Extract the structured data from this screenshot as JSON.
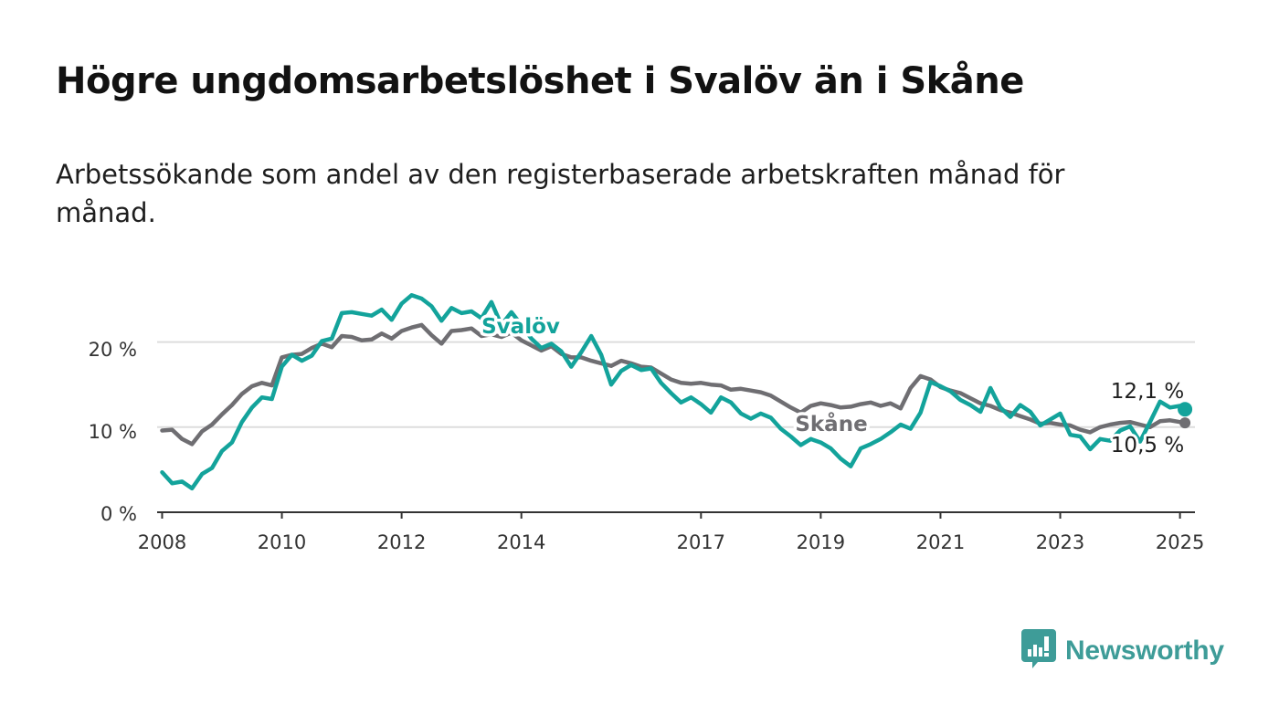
{
  "header": {
    "title": "Högre ungdomsarbetslöshet i Svalöv än i Skåne",
    "subtitle": "Arbetssökande som andel av den registerbaserade arbetskraften månad för månad."
  },
  "brand": {
    "name": "Newsworthy",
    "icon": "newsworthy-logo-icon",
    "color": "#3e9c98"
  },
  "colors": {
    "svalov": "#13a39b",
    "skane": "#6f6e72",
    "grid": "#dddddd",
    "axis": "#333333"
  },
  "chart_data": {
    "type": "line",
    "x_ticks": [
      "2008",
      "2010",
      "2012",
      "2014",
      "2017",
      "2019",
      "2021",
      "2023",
      "2025"
    ],
    "y_ticks": [
      "0 %",
      "10 %",
      "20 %"
    ],
    "ylim": [
      0,
      28
    ],
    "xlim": [
      "2007-12",
      "2025-04"
    ],
    "grid": "horizontal",
    "legend": "inline labels on lines",
    "series": [
      {
        "name": "Svalöv",
        "color": "#13a39b",
        "end_label": "12,1 %",
        "points": [
          [
            "2008-01",
            4.7
          ],
          [
            "2008-03",
            3.4
          ],
          [
            "2008-05",
            3.6
          ],
          [
            "2008-07",
            2.8
          ],
          [
            "2008-09",
            4.5
          ],
          [
            "2008-11",
            5.2
          ],
          [
            "2009-01",
            7.2
          ],
          [
            "2009-03",
            8.2
          ],
          [
            "2009-05",
            10.6
          ],
          [
            "2009-07",
            12.3
          ],
          [
            "2009-09",
            13.5
          ],
          [
            "2009-11",
            13.3
          ],
          [
            "2010-01",
            17.1
          ],
          [
            "2010-03",
            18.5
          ],
          [
            "2010-05",
            17.8
          ],
          [
            "2010-07",
            18.4
          ],
          [
            "2010-09",
            20.1
          ],
          [
            "2010-11",
            20.4
          ],
          [
            "2011-01",
            23.4
          ],
          [
            "2011-03",
            23.5
          ],
          [
            "2011-05",
            23.3
          ],
          [
            "2011-07",
            23.1
          ],
          [
            "2011-09",
            23.8
          ],
          [
            "2011-11",
            22.6
          ],
          [
            "2012-01",
            24.5
          ],
          [
            "2012-03",
            25.5
          ],
          [
            "2012-05",
            25.1
          ],
          [
            "2012-07",
            24.2
          ],
          [
            "2012-09",
            22.5
          ],
          [
            "2012-11",
            24.0
          ],
          [
            "2013-01",
            23.4
          ],
          [
            "2013-03",
            23.6
          ],
          [
            "2013-05",
            22.8
          ],
          [
            "2013-07",
            24.7
          ],
          [
            "2013-09",
            22.0
          ],
          [
            "2013-11",
            23.5
          ],
          [
            "2014-01",
            22.0
          ],
          [
            "2014-03",
            20.4
          ],
          [
            "2014-05",
            19.3
          ],
          [
            "2014-07",
            19.8
          ],
          [
            "2014-09",
            18.9
          ],
          [
            "2014-11",
            17.1
          ],
          [
            "2015-01",
            18.8
          ],
          [
            "2015-03",
            20.7
          ],
          [
            "2015-05",
            18.5
          ],
          [
            "2015-07",
            15.0
          ],
          [
            "2015-09",
            16.6
          ],
          [
            "2015-11",
            17.3
          ],
          [
            "2016-01",
            16.7
          ],
          [
            "2016-03",
            16.9
          ],
          [
            "2016-05",
            15.2
          ],
          [
            "2016-07",
            14.0
          ],
          [
            "2016-09",
            12.9
          ],
          [
            "2016-11",
            13.5
          ],
          [
            "2017-01",
            12.7
          ],
          [
            "2017-03",
            11.7
          ],
          [
            "2017-05",
            13.5
          ],
          [
            "2017-07",
            12.9
          ],
          [
            "2017-09",
            11.6
          ],
          [
            "2017-11",
            11.0
          ],
          [
            "2018-01",
            11.6
          ],
          [
            "2018-03",
            11.1
          ],
          [
            "2018-05",
            9.8
          ],
          [
            "2018-07",
            8.9
          ],
          [
            "2018-09",
            7.9
          ],
          [
            "2018-11",
            8.6
          ],
          [
            "2019-01",
            8.2
          ],
          [
            "2019-03",
            7.5
          ],
          [
            "2019-05",
            6.3
          ],
          [
            "2019-07",
            5.4
          ],
          [
            "2019-09",
            7.5
          ],
          [
            "2019-11",
            8.0
          ],
          [
            "2020-01",
            8.6
          ],
          [
            "2020-03",
            9.4
          ],
          [
            "2020-05",
            10.3
          ],
          [
            "2020-07",
            9.8
          ],
          [
            "2020-09",
            11.7
          ],
          [
            "2020-11",
            15.3
          ],
          [
            "2021-01",
            14.8
          ],
          [
            "2021-03",
            14.2
          ],
          [
            "2021-05",
            13.2
          ],
          [
            "2021-07",
            12.6
          ],
          [
            "2021-09",
            11.8
          ],
          [
            "2021-11",
            14.6
          ],
          [
            "2022-01",
            12.3
          ],
          [
            "2022-03",
            11.2
          ],
          [
            "2022-05",
            12.6
          ],
          [
            "2022-07",
            11.8
          ],
          [
            "2022-09",
            10.2
          ],
          [
            "2022-11",
            10.9
          ],
          [
            "2023-01",
            11.6
          ],
          [
            "2023-03",
            9.1
          ],
          [
            "2023-05",
            8.9
          ],
          [
            "2023-07",
            7.4
          ],
          [
            "2023-09",
            8.6
          ],
          [
            "2023-11",
            8.4
          ],
          [
            "2024-01",
            9.6
          ],
          [
            "2024-03",
            10.1
          ],
          [
            "2024-05",
            8.3
          ],
          [
            "2024-07",
            10.6
          ],
          [
            "2024-09",
            13.0
          ],
          [
            "2024-11",
            12.3
          ],
          [
            "2025-01",
            12.5
          ],
          [
            "2025-02",
            12.1
          ]
        ]
      },
      {
        "name": "Skåne",
        "color": "#6f6e72",
        "end_label": "10,5 %",
        "points": [
          [
            "2008-01",
            9.6
          ],
          [
            "2008-03",
            9.7
          ],
          [
            "2008-05",
            8.6
          ],
          [
            "2008-07",
            8.0
          ],
          [
            "2008-09",
            9.5
          ],
          [
            "2008-11",
            10.3
          ],
          [
            "2009-01",
            11.5
          ],
          [
            "2009-03",
            12.6
          ],
          [
            "2009-05",
            13.9
          ],
          [
            "2009-07",
            14.8
          ],
          [
            "2009-09",
            15.2
          ],
          [
            "2009-11",
            14.9
          ],
          [
            "2010-01",
            18.2
          ],
          [
            "2010-03",
            18.5
          ],
          [
            "2010-05",
            18.6
          ],
          [
            "2010-07",
            19.3
          ],
          [
            "2010-09",
            19.8
          ],
          [
            "2010-11",
            19.4
          ],
          [
            "2011-01",
            20.7
          ],
          [
            "2011-03",
            20.6
          ],
          [
            "2011-05",
            20.2
          ],
          [
            "2011-07",
            20.3
          ],
          [
            "2011-09",
            21.0
          ],
          [
            "2011-11",
            20.4
          ],
          [
            "2012-01",
            21.3
          ],
          [
            "2012-03",
            21.7
          ],
          [
            "2012-05",
            22.0
          ],
          [
            "2012-07",
            20.8
          ],
          [
            "2012-09",
            19.8
          ],
          [
            "2012-11",
            21.3
          ],
          [
            "2013-01",
            21.4
          ],
          [
            "2013-03",
            21.6
          ],
          [
            "2013-05",
            20.7
          ],
          [
            "2013-07",
            20.9
          ],
          [
            "2013-09",
            20.6
          ],
          [
            "2013-11",
            21.1
          ],
          [
            "2014-01",
            20.2
          ],
          [
            "2014-03",
            19.6
          ],
          [
            "2014-05",
            19.0
          ],
          [
            "2014-07",
            19.5
          ],
          [
            "2014-09",
            18.6
          ],
          [
            "2014-11",
            18.2
          ],
          [
            "2015-01",
            18.2
          ],
          [
            "2015-03",
            17.8
          ],
          [
            "2015-05",
            17.5
          ],
          [
            "2015-07",
            17.2
          ],
          [
            "2015-09",
            17.8
          ],
          [
            "2015-11",
            17.5
          ],
          [
            "2016-01",
            17.1
          ],
          [
            "2016-03",
            17.0
          ],
          [
            "2016-05",
            16.3
          ],
          [
            "2016-07",
            15.6
          ],
          [
            "2016-09",
            15.2
          ],
          [
            "2016-11",
            15.1
          ],
          [
            "2017-01",
            15.2
          ],
          [
            "2017-03",
            15.0
          ],
          [
            "2017-05",
            14.9
          ],
          [
            "2017-07",
            14.4
          ],
          [
            "2017-09",
            14.5
          ],
          [
            "2017-11",
            14.3
          ],
          [
            "2018-01",
            14.1
          ],
          [
            "2018-03",
            13.7
          ],
          [
            "2018-05",
            13.0
          ],
          [
            "2018-07",
            12.3
          ],
          [
            "2018-09",
            11.7
          ],
          [
            "2018-11",
            12.5
          ],
          [
            "2019-01",
            12.8
          ],
          [
            "2019-03",
            12.6
          ],
          [
            "2019-05",
            12.3
          ],
          [
            "2019-07",
            12.4
          ],
          [
            "2019-09",
            12.7
          ],
          [
            "2019-11",
            12.9
          ],
          [
            "2020-01",
            12.5
          ],
          [
            "2020-03",
            12.8
          ],
          [
            "2020-05",
            12.2
          ],
          [
            "2020-07",
            14.6
          ],
          [
            "2020-09",
            16.0
          ],
          [
            "2020-11",
            15.6
          ],
          [
            "2021-01",
            14.7
          ],
          [
            "2021-03",
            14.3
          ],
          [
            "2021-05",
            14.0
          ],
          [
            "2021-07",
            13.4
          ],
          [
            "2021-09",
            12.8
          ],
          [
            "2021-11",
            12.5
          ],
          [
            "2022-01",
            12.0
          ],
          [
            "2022-03",
            11.7
          ],
          [
            "2022-05",
            11.3
          ],
          [
            "2022-07",
            10.9
          ],
          [
            "2022-09",
            10.4
          ],
          [
            "2022-11",
            10.5
          ],
          [
            "2023-01",
            10.3
          ],
          [
            "2023-03",
            10.2
          ],
          [
            "2023-05",
            9.7
          ],
          [
            "2023-07",
            9.4
          ],
          [
            "2023-09",
            10.0
          ],
          [
            "2023-11",
            10.3
          ],
          [
            "2024-01",
            10.5
          ],
          [
            "2024-03",
            10.6
          ],
          [
            "2024-05",
            10.3
          ],
          [
            "2024-07",
            10.0
          ],
          [
            "2024-09",
            10.7
          ],
          [
            "2024-11",
            10.8
          ],
          [
            "2025-01",
            10.6
          ],
          [
            "2025-02",
            10.5
          ]
        ]
      }
    ]
  }
}
